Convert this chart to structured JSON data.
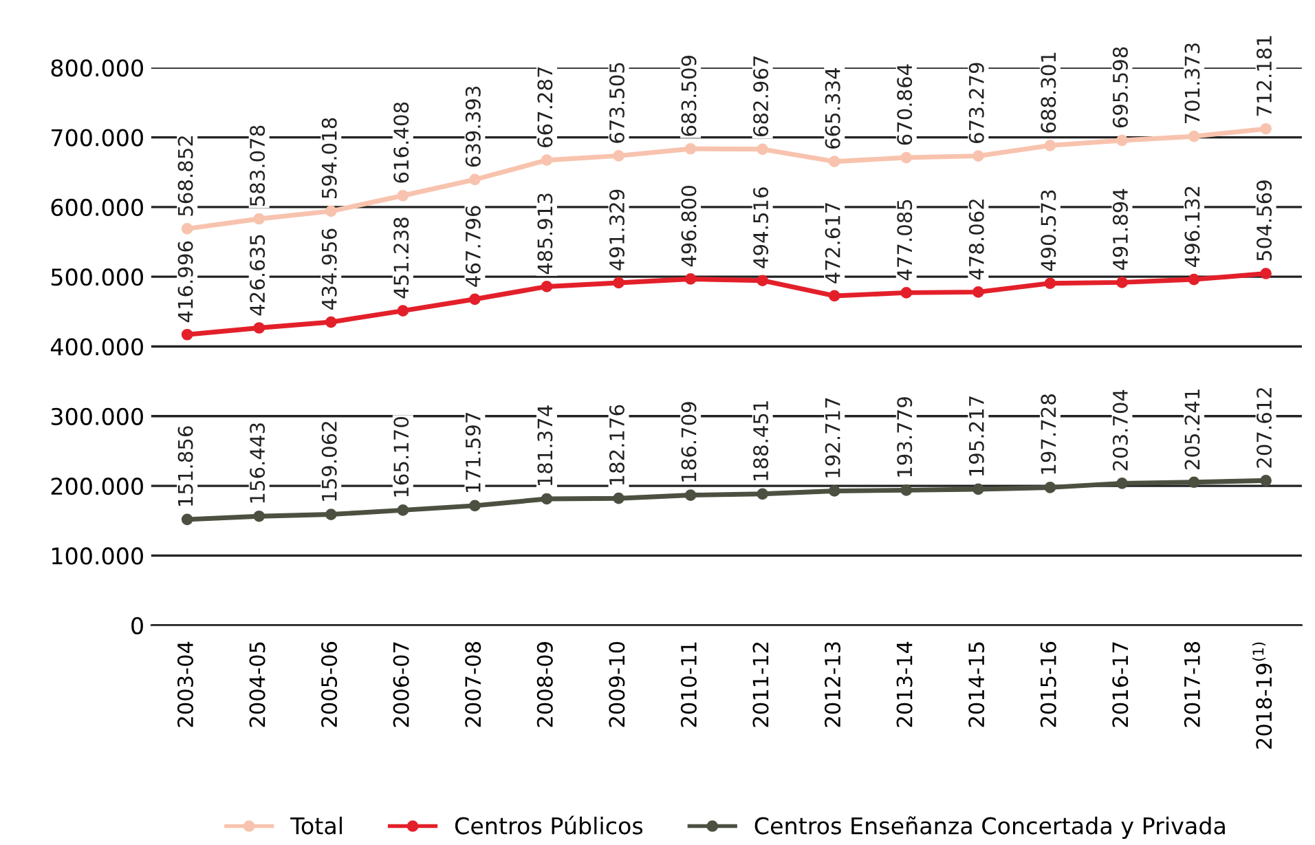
{
  "chart_data": {
    "type": "line",
    "categories": [
      "2003-04",
      "2004-05",
      "2005-06",
      "2006-07",
      "2007-08",
      "2008-09",
      "2009-10",
      "2010-11",
      "2011-12",
      "2012-13",
      "2013-14",
      "2014-15",
      "2015-16",
      "2016-17",
      "2017-18",
      "2018-19$^{(1)}$"
    ],
    "series": [
      {
        "name": "Total",
        "color": "#f8c3ae",
        "values": [
          568852,
          583078,
          594018,
          616408,
          639393,
          667287,
          673505,
          683509,
          682967,
          665334,
          670864,
          673279,
          688301,
          695598,
          701373,
          712181
        ],
        "value_labels": [
          "568.852",
          "583.078",
          "594.018",
          "616.408",
          "639.393",
          "667.287",
          "673.505",
          "683.509",
          "682.967",
          "665.334",
          "670.864",
          "673.279",
          "688.301",
          "695.598",
          "701.373",
          "712.181"
        ]
      },
      {
        "name": "Centros Públicos",
        "color": "#e3202a",
        "values": [
          416996,
          426635,
          434956,
          451238,
          467796,
          485913,
          491329,
          496800,
          494516,
          472617,
          477085,
          478062,
          490573,
          491894,
          496132,
          504569
        ],
        "value_labels": [
          "416.996",
          "426.635",
          "434.956",
          "451.238",
          "467.796",
          "485.913",
          "491.329",
          "496.800",
          "494.516",
          "472.617",
          "477.085",
          "478.062",
          "490.573",
          "491.894",
          "496.132",
          "504.569"
        ]
      },
      {
        "name": "Centros Enseñanza Concertada y Privada",
        "color": "#4b5040",
        "values": [
          151856,
          156443,
          159062,
          165170,
          171597,
          181374,
          182176,
          186709,
          188451,
          192717,
          193779,
          195217,
          197728,
          203704,
          205241,
          207612
        ],
        "value_labels": [
          "151.856",
          "156.443",
          "159.062",
          "165.170",
          "171.597",
          "181.374",
          "182.176",
          "186.709",
          "188.451",
          "192.717",
          "193.779",
          "195.217",
          "197.728",
          "203.704",
          "205.241",
          "207.612"
        ]
      }
    ],
    "ylim": [
      0,
      800000
    ],
    "yticks": [
      0,
      {
        "value": 100000,
        "label": "100.000"
      },
      {
        "value": 200000,
        "label": "200.000"
      },
      {
        "value": 300000,
        "label": "300.000"
      },
      {
        "value": 400000,
        "label": "400.000"
      },
      {
        "value": 500000,
        "label": "500.000"
      },
      {
        "value": 600000,
        "label": "600.000"
      },
      {
        "value": 700000,
        "label": "700.000"
      },
      {
        "value": 800000,
        "label": "800.000"
      }
    ],
    "grid": "y",
    "legend": "bottom",
    "marker": "circle",
    "line_style": "solid"
  }
}
